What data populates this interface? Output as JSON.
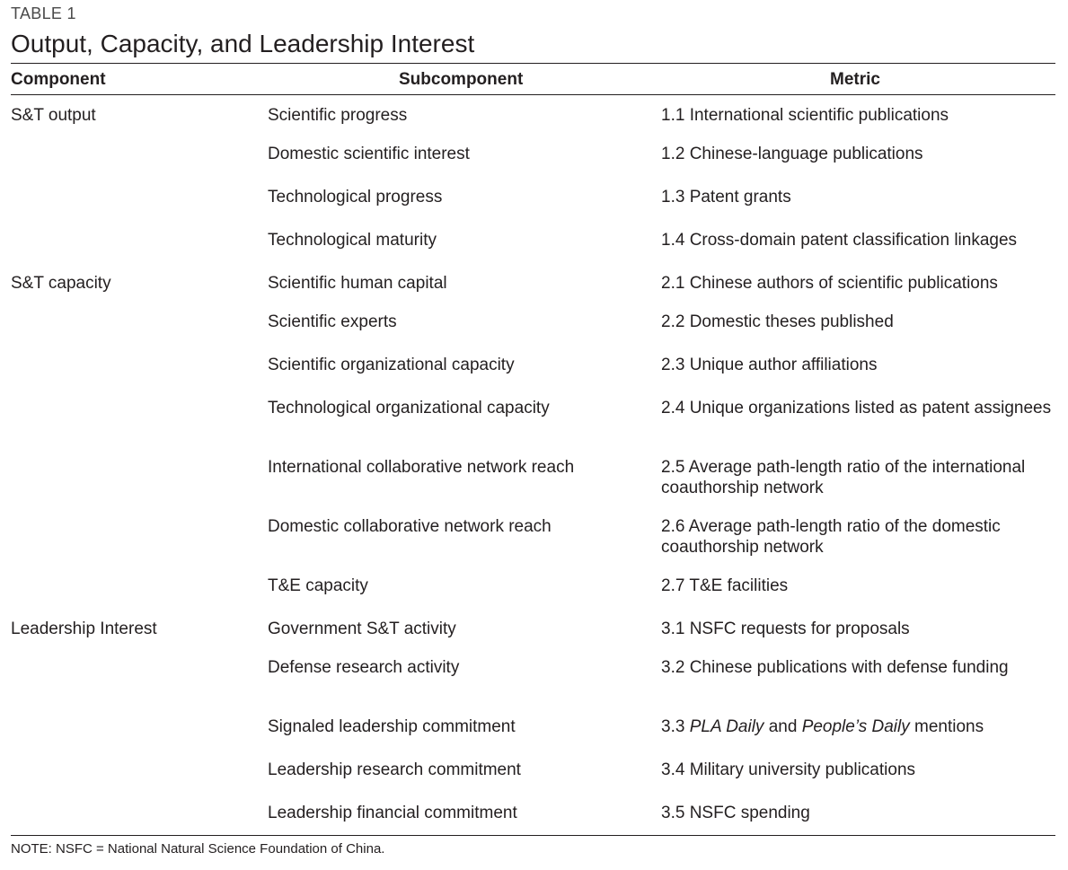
{
  "table_label": "TABLE 1",
  "title": "Output, Capacity, and Leadership Interest",
  "headers": {
    "component": "Component",
    "subcomponent": "Subcomponent",
    "metric": "Metric"
  },
  "rows": [
    {
      "component": "S&T output",
      "subcomponent": "Scientific progress",
      "metric": "1.1 International scientific publications"
    },
    {
      "component": "",
      "subcomponent": "Domestic scientific interest",
      "metric": "1.2 Chinese-language publications"
    },
    {
      "component": "",
      "subcomponent": "Technological progress",
      "metric": "1.3 Patent grants"
    },
    {
      "component": "",
      "subcomponent": "Technological maturity",
      "metric": "1.4 Cross-domain patent classification linkages"
    },
    {
      "component": "S&T capacity",
      "subcomponent": "Scientific human capital",
      "metric": "2.1 Chinese authors of scientific publications"
    },
    {
      "component": "",
      "subcomponent": "Scientific experts",
      "metric": "2.2 Domestic theses published"
    },
    {
      "component": "",
      "subcomponent": "Scientific organizational capacity",
      "metric": "2.3 Unique author affiliations"
    },
    {
      "component": "",
      "subcomponent": "Technological organizational capacity",
      "metric": "2.4 Unique organizations listed as patent assignees"
    },
    {
      "component": "",
      "subcomponent": "International collaborative network reach",
      "metric": "2.5 Average path-length ratio of the international coauthorship network"
    },
    {
      "component": "",
      "subcomponent": "Domestic collaborative network reach",
      "metric": "2.6 Average path-length ratio of the domestic coauthorship network"
    },
    {
      "component": "",
      "subcomponent": "T&E capacity",
      "metric": "2.7 T&E facilities"
    },
    {
      "component": "Leadership Interest",
      "subcomponent": "Government S&T activity",
      "metric": "3.1 NSFC requests for proposals"
    },
    {
      "component": "",
      "subcomponent": "Defense research activity",
      "metric": "3.2 Chinese publications with defense funding"
    },
    {
      "component": "",
      "subcomponent": "Signaled leadership commitment",
      "metric": "3.3 ",
      "metric_italic_1": "PLA Daily",
      "metric_mid": " and ",
      "metric_italic_2": "People’s Daily",
      "metric_end": " mentions"
    },
    {
      "component": "",
      "subcomponent": "Leadership research commitment",
      "metric": "3.4 Military university publications"
    },
    {
      "component": "",
      "subcomponent": "Leadership financial commitment",
      "metric": "3.5 NSFC spending"
    }
  ],
  "note": "NOTE: NSFC = National Natural Science Foundation of China."
}
